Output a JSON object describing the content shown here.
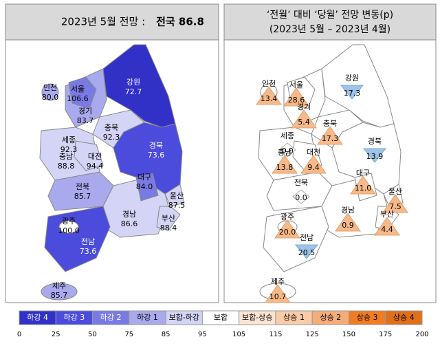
{
  "left": {
    "title_prefix": "2023년 5월 전망 :",
    "title_bold": "전국 86.8",
    "regions": [
      {
        "name": "인천",
        "value": "80.0"
      },
      {
        "name": "서울",
        "value": "106.6"
      },
      {
        "name": "경기",
        "value": "83.7"
      },
      {
        "name": "강원",
        "value": "72.7"
      },
      {
        "name": "충북",
        "value": "92.3"
      },
      {
        "name": "세종",
        "value": "92.3"
      },
      {
        "name": "대전",
        "value": "94.4"
      },
      {
        "name": "충남",
        "value": "88.8"
      },
      {
        "name": "경북",
        "value": "73.6"
      },
      {
        "name": "전북",
        "value": "85.7"
      },
      {
        "name": "대구",
        "value": "84.0"
      },
      {
        "name": "울산",
        "value": "87.5"
      },
      {
        "name": "경남",
        "value": "86.6"
      },
      {
        "name": "부산",
        "value": "88.4"
      },
      {
        "name": "광주",
        "value": "100.0"
      },
      {
        "name": "전남",
        "value": "73.6"
      },
      {
        "name": "제주",
        "value": "85.7"
      }
    ]
  },
  "right": {
    "title_lines": [
      "‘전월’ 대비 ‘당월’ 전망 변동(p)",
      "(2023년 5월 – 2023년 4월)"
    ],
    "regions": [
      {
        "name": "인천",
        "value": "13.4"
      },
      {
        "name": "서울",
        "value": "28.6"
      },
      {
        "name": "경기",
        "value": "5.4"
      },
      {
        "name": "강원",
        "value": "17.3"
      },
      {
        "name": "충북",
        "value": "17.3"
      },
      {
        "name": "세종",
        "value": "0.0"
      },
      {
        "name": "대전",
        "value": "9.4"
      },
      {
        "name": "충남",
        "value": "13.8"
      },
      {
        "name": "경북",
        "value": "13.9"
      },
      {
        "name": "전북",
        "value": "0.0"
      },
      {
        "name": "대구",
        "value": "11.0"
      },
      {
        "name": "울산",
        "value": "7.5"
      },
      {
        "name": "경남",
        "value": "0.9"
      },
      {
        "name": "부산",
        "value": "4.4"
      },
      {
        "name": "광주",
        "value": "20.0"
      },
      {
        "name": "전남",
        "value": "20.5"
      },
      {
        "name": "제주",
        "value": "10.7"
      }
    ]
  },
  "legend": {
    "items": [
      {
        "label": "하강 4",
        "color": "#3131c8"
      },
      {
        "label": "하강 3",
        "color": "#4b4bdc"
      },
      {
        "label": "하강 2",
        "color": "#7a7ae4"
      },
      {
        "label": "하강 1",
        "color": "#a9a9ee"
      },
      {
        "label": "보합-하강",
        "color": "#d4d4f6"
      },
      {
        "label": "보합",
        "color": "#ffffff"
      },
      {
        "label": "보합-상승",
        "color": "#fce4d3"
      },
      {
        "label": "상승 1",
        "color": "#f9cba8"
      },
      {
        "label": "상승 2",
        "color": "#f4ad78"
      },
      {
        "label": "상승 3",
        "color": "#f07d24"
      },
      {
        "label": "상승 4",
        "color": "#e0701a"
      }
    ],
    "ticks": [
      0,
      25,
      50,
      75,
      85,
      95,
      105,
      115,
      125,
      150,
      175,
      200
    ]
  }
}
